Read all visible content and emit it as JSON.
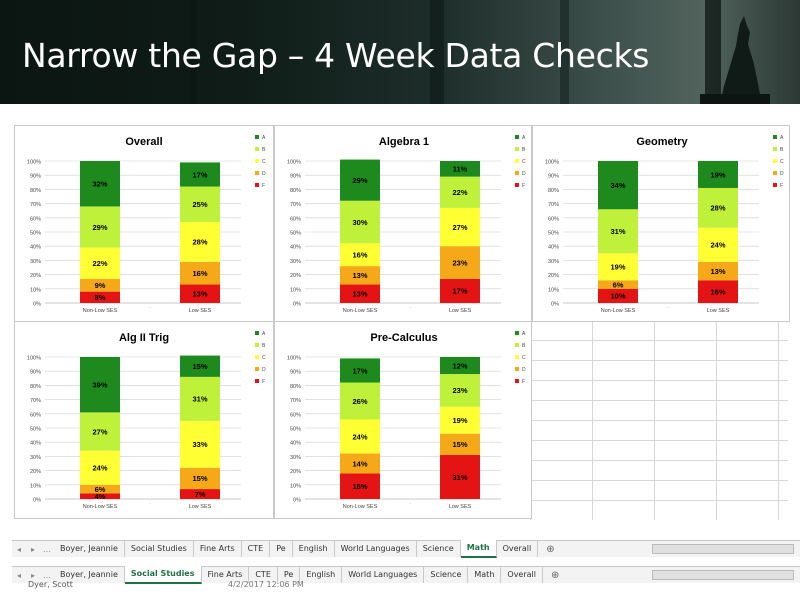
{
  "slide": {
    "title": "Narrow the Gap – 4 Week Data Checks"
  },
  "grade_colors": {
    "A": "#1e8a1e",
    "B": "#bff03a",
    "C": "#ffff33",
    "D": "#f5a818",
    "F": "#e41414"
  },
  "legend_labels": [
    "A",
    "B",
    "C",
    "D",
    "F"
  ],
  "y_ticks": [
    "0%",
    "10%",
    "20%",
    "30%",
    "40%",
    "50%",
    "60%",
    "70%",
    "80%",
    "90%",
    "100%"
  ],
  "tabs_top": {
    "items": [
      "Boyer, Jeannie",
      "Social Studies",
      "Fine Arts",
      "CTE",
      "Pe",
      "English",
      "World Languages",
      "Science",
      "Math",
      "Overall"
    ],
    "active": "Math"
  },
  "tabs_bottom": {
    "items": [
      "Boyer, Jeannie",
      "Social Studies",
      "Fine Arts",
      "CTE",
      "Pe",
      "English",
      "World Languages",
      "Science",
      "Math",
      "Overall"
    ],
    "active": "Social Studies"
  },
  "status": {
    "user": "Dyer, Scott",
    "timestamp": "4/2/2017 12:06 PM"
  },
  "chart_data": [
    {
      "type": "bar",
      "stacked": true,
      "title": "Overall",
      "ylim": [
        0,
        100
      ],
      "categories": [
        "Non-Low SES",
        "Low SES"
      ],
      "series": [
        {
          "name": "F",
          "values": [
            8,
            13
          ]
        },
        {
          "name": "D",
          "values": [
            9,
            16
          ]
        },
        {
          "name": "C",
          "values": [
            22,
            28
          ]
        },
        {
          "name": "B",
          "values": [
            29,
            25
          ]
        },
        {
          "name": "A",
          "values": [
            32,
            17
          ]
        }
      ],
      "legend": "right"
    },
    {
      "type": "bar",
      "stacked": true,
      "title": "Algebra 1",
      "ylim": [
        0,
        100
      ],
      "categories": [
        "Non-Low SES",
        "Low SES"
      ],
      "series": [
        {
          "name": "F",
          "values": [
            13,
            17
          ]
        },
        {
          "name": "D",
          "values": [
            13,
            23
          ]
        },
        {
          "name": "C",
          "values": [
            16,
            27
          ]
        },
        {
          "name": "B",
          "values": [
            30,
            22
          ]
        },
        {
          "name": "A",
          "values": [
            29,
            11
          ]
        }
      ],
      "legend": "right"
    },
    {
      "type": "bar",
      "stacked": true,
      "title": "Geometry",
      "ylim": [
        0,
        100
      ],
      "categories": [
        "Non-Low SES",
        "Low SES"
      ],
      "series": [
        {
          "name": "F",
          "values": [
            10,
            16
          ]
        },
        {
          "name": "D",
          "values": [
            6,
            13
          ]
        },
        {
          "name": "C",
          "values": [
            19,
            24
          ]
        },
        {
          "name": "B",
          "values": [
            31,
            28
          ]
        },
        {
          "name": "A",
          "values": [
            34,
            19
          ]
        }
      ],
      "legend": "right"
    },
    {
      "type": "bar",
      "stacked": true,
      "title": "Alg II Trig",
      "ylim": [
        0,
        100
      ],
      "categories": [
        "Non-Low SES",
        "Low SES"
      ],
      "series": [
        {
          "name": "F",
          "values": [
            4,
            7
          ]
        },
        {
          "name": "D",
          "values": [
            6,
            15
          ]
        },
        {
          "name": "C",
          "values": [
            24,
            33
          ]
        },
        {
          "name": "B",
          "values": [
            27,
            31
          ]
        },
        {
          "name": "A",
          "values": [
            39,
            15
          ]
        }
      ],
      "legend": "right"
    },
    {
      "type": "bar",
      "stacked": true,
      "title": "Pre-Calculus",
      "ylim": [
        0,
        100
      ],
      "categories": [
        "Non-Low SES",
        "Low SES"
      ],
      "series": [
        {
          "name": "F",
          "values": [
            18,
            31
          ]
        },
        {
          "name": "D",
          "values": [
            14,
            15
          ]
        },
        {
          "name": "C",
          "values": [
            24,
            19
          ]
        },
        {
          "name": "B",
          "values": [
            26,
            23
          ]
        },
        {
          "name": "A",
          "values": [
            17,
            12
          ]
        }
      ],
      "legend": "right"
    }
  ]
}
